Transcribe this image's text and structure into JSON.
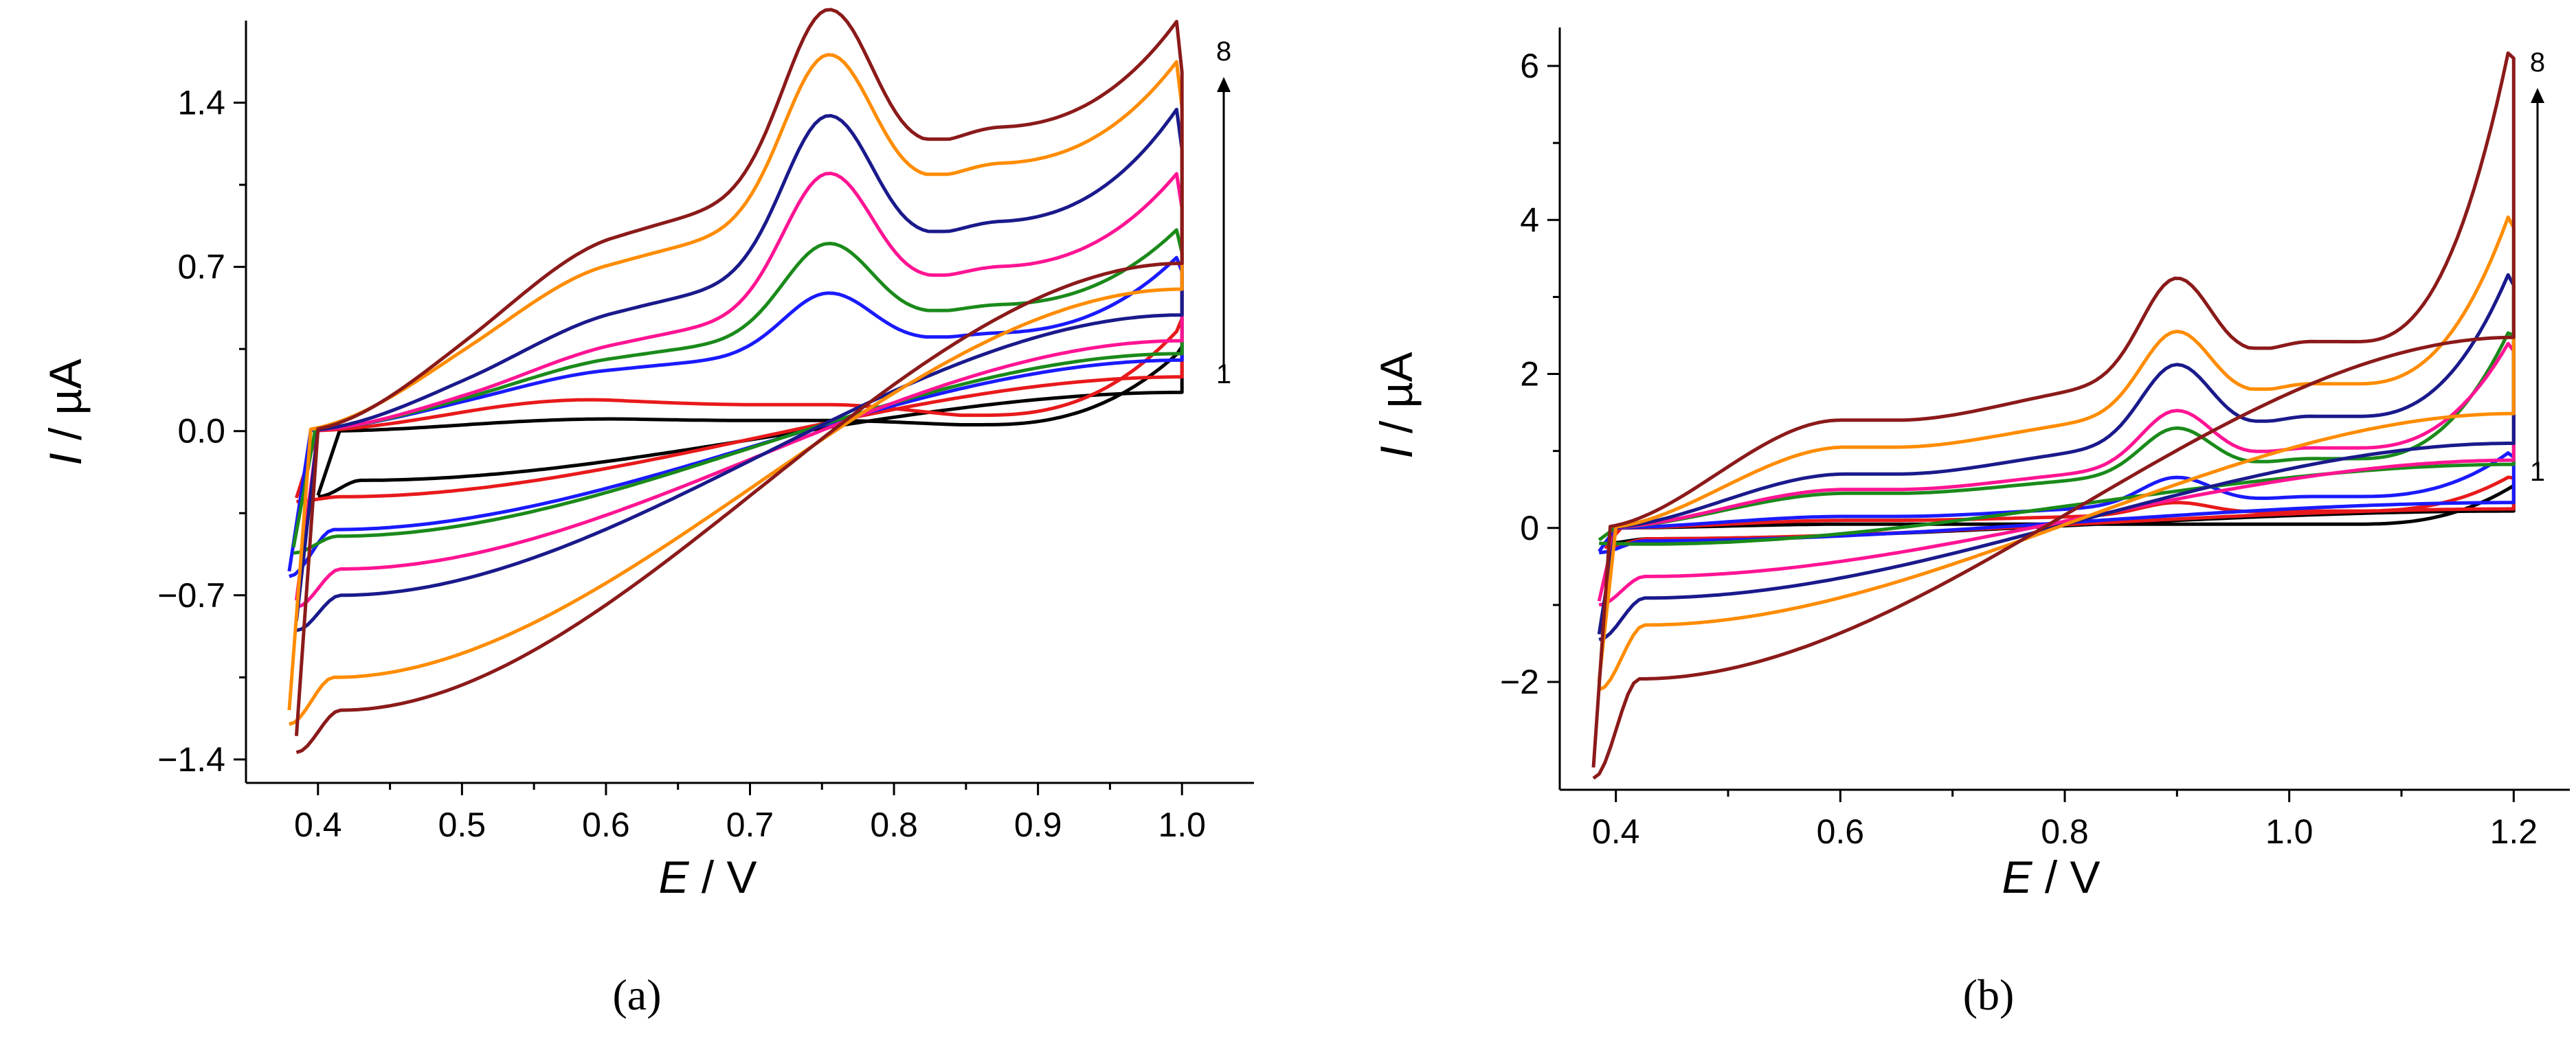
{
  "chart_data": [
    {
      "type": "line",
      "panel_label": "(a)",
      "xlabel_italic": "E",
      "xlabel_rest": " / V",
      "ylabel_italic": "I",
      "ylabel_rest": " / µA",
      "xlim": [
        0.35,
        1.05
      ],
      "ylim": [
        -1.5,
        1.75
      ],
      "xticks": [
        0.4,
        0.5,
        0.6,
        0.7,
        0.8,
        0.9,
        1.0
      ],
      "xtick_labels": [
        "0.4",
        "0.5",
        "0.6",
        "0.7",
        "0.8",
        "0.9",
        "1.0"
      ],
      "yticks": [
        -1.4,
        -0.7,
        0.0,
        0.7,
        1.4
      ],
      "ytick_labels": [
        "−1.4",
        "−0.7",
        "0.0",
        "0.7",
        "1.4"
      ],
      "arrow_label_top": "8",
      "arrow_label_bottom": "1",
      "arrow_range": [
        0.25,
        1.6
      ],
      "series": [
        {
          "name": "1",
          "color": "#000000",
          "x0": 0.4,
          "x1": 1.0,
          "peak": 0.0,
          "fwd_plateau": 0.06,
          "fwd_end": 0.36,
          "rev_start": -0.28,
          "rev_plateau": -0.15,
          "rev_end": 0.3
        },
        {
          "name": "2",
          "color": "#e8191b",
          "x0": 0.385,
          "x1": 1.0,
          "peak": 0.0,
          "fwd_plateau": 0.15,
          "fwd_end": 0.48,
          "rev_start": -0.3,
          "rev_plateau": -0.2,
          "rev_end": 0.42
        },
        {
          "name": "3",
          "color": "#1a1aff",
          "x0": 0.38,
          "x1": 1.0,
          "peak": 0.55,
          "fwd_plateau": 0.22,
          "fwd_end": 0.68,
          "rev_start": -0.62,
          "rev_plateau": -0.3,
          "rev_end": 0.55
        },
        {
          "name": "4",
          "color": "#1a8a1a",
          "x0": 0.383,
          "x1": 1.0,
          "peak": 0.73,
          "fwd_plateau": 0.25,
          "fwd_end": 0.76,
          "rev_start": -0.52,
          "rev_plateau": -0.32,
          "rev_end": 0.6
        },
        {
          "name": "5",
          "color": "#ff1493",
          "x0": 0.385,
          "x1": 1.0,
          "peak": 0.98,
          "fwd_plateau": 0.28,
          "fwd_end": 0.95,
          "rev_start": -0.75,
          "rev_plateau": -0.42,
          "rev_end": 0.7
        },
        {
          "name": "6",
          "color": "#1a1a8c",
          "x0": 0.385,
          "x1": 1.0,
          "peak": 1.22,
          "fwd_plateau": 0.4,
          "fwd_end": 1.2,
          "rev_start": -0.85,
          "rev_plateau": -0.5,
          "rev_end": 0.9
        },
        {
          "name": "7",
          "color": "#ff8c00",
          "x0": 0.38,
          "x1": 1.0,
          "peak": 1.5,
          "fwd_plateau": 0.6,
          "fwd_end": 1.38,
          "rev_start": -1.25,
          "rev_plateau": -0.75,
          "rev_end": 1.1
        },
        {
          "name": "8",
          "color": "#8b1a1a",
          "x0": 0.385,
          "x1": 1.0,
          "peak": 1.69,
          "fwd_plateau": 0.7,
          "fwd_end": 1.53,
          "rev_start": -1.37,
          "rev_plateau": -0.85,
          "rev_end": 1.3
        }
      ],
      "peak_potential": 0.755
    },
    {
      "type": "line",
      "panel_label": "(b)",
      "xlabel_italic": "E",
      "xlabel_rest": " / V",
      "ylabel_italic": "I",
      "ylabel_rest": " / µA",
      "xlim": [
        0.35,
        1.25
      ],
      "ylim": [
        -3.4,
        6.5
      ],
      "xticks": [
        0.4,
        0.6,
        0.8,
        1.0,
        1.2
      ],
      "xtick_labels": [
        "0.4",
        "0.6",
        "0.8",
        "1.0",
        "1.2"
      ],
      "yticks": [
        -2,
        0,
        2,
        4,
        6
      ],
      "ytick_labels": [
        "−2",
        "0",
        "2",
        "4",
        "6"
      ],
      "arrow_label_top": "8",
      "arrow_label_bottom": "1",
      "arrow_range": [
        0.5,
        5.6
      ],
      "series": [
        {
          "name": "1",
          "color": "#000000",
          "x0": 0.39,
          "x1": 1.2,
          "peak": 0.05,
          "fwd_plateau": 0.05,
          "fwd_end": 0.55,
          "rev_start": -0.2,
          "rev_plateau": -0.1,
          "rev_end": 0.4
        },
        {
          "name": "2",
          "color": "#e8191b",
          "x0": 0.39,
          "x1": 1.2,
          "peak": 0.3,
          "fwd_plateau": 0.1,
          "fwd_end": 0.65,
          "rev_start": -0.25,
          "rev_plateau": -0.1,
          "rev_end": 0.45
        },
        {
          "name": "3",
          "color": "#1a1aff",
          "x0": 0.385,
          "x1": 1.2,
          "peak": 0.58,
          "fwd_plateau": 0.15,
          "fwd_end": 0.92,
          "rev_start": -0.32,
          "rev_plateau": -0.12,
          "rev_end": 0.6
        },
        {
          "name": "4",
          "color": "#1a8a1a",
          "x0": 0.385,
          "x1": 1.2,
          "peak": 1.2,
          "fwd_plateau": 0.45,
          "fwd_end": 2.5,
          "rev_start": -0.2,
          "rev_plateau": -0.15,
          "rev_end": 1.5
        },
        {
          "name": "5",
          "color": "#ff1493",
          "x0": 0.385,
          "x1": 1.2,
          "peak": 1.4,
          "fwd_plateau": 0.5,
          "fwd_end": 2.3,
          "rev_start": -1.0,
          "rev_plateau": -0.45,
          "rev_end": 1.6
        },
        {
          "name": "6",
          "color": "#1a1a8c",
          "x0": 0.385,
          "x1": 1.2,
          "peak": 1.95,
          "fwd_plateau": 0.7,
          "fwd_end": 3.15,
          "rev_start": -1.45,
          "rev_plateau": -0.65,
          "rev_end": 2.0
        },
        {
          "name": "7",
          "color": "#ff8c00",
          "x0": 0.385,
          "x1": 1.2,
          "peak": 2.42,
          "fwd_plateau": 1.05,
          "fwd_end": 3.9,
          "rev_start": -2.1,
          "rev_plateau": -0.9,
          "rev_end": 2.7
        },
        {
          "name": "8",
          "color": "#8b1a1a",
          "x0": 0.38,
          "x1": 1.2,
          "peak": 3.1,
          "fwd_plateau": 1.4,
          "fwd_end": 6.1,
          "rev_start": -3.25,
          "rev_plateau": -1.4,
          "rev_end": 4.5
        }
      ],
      "peak_potential": 0.9
    }
  ]
}
